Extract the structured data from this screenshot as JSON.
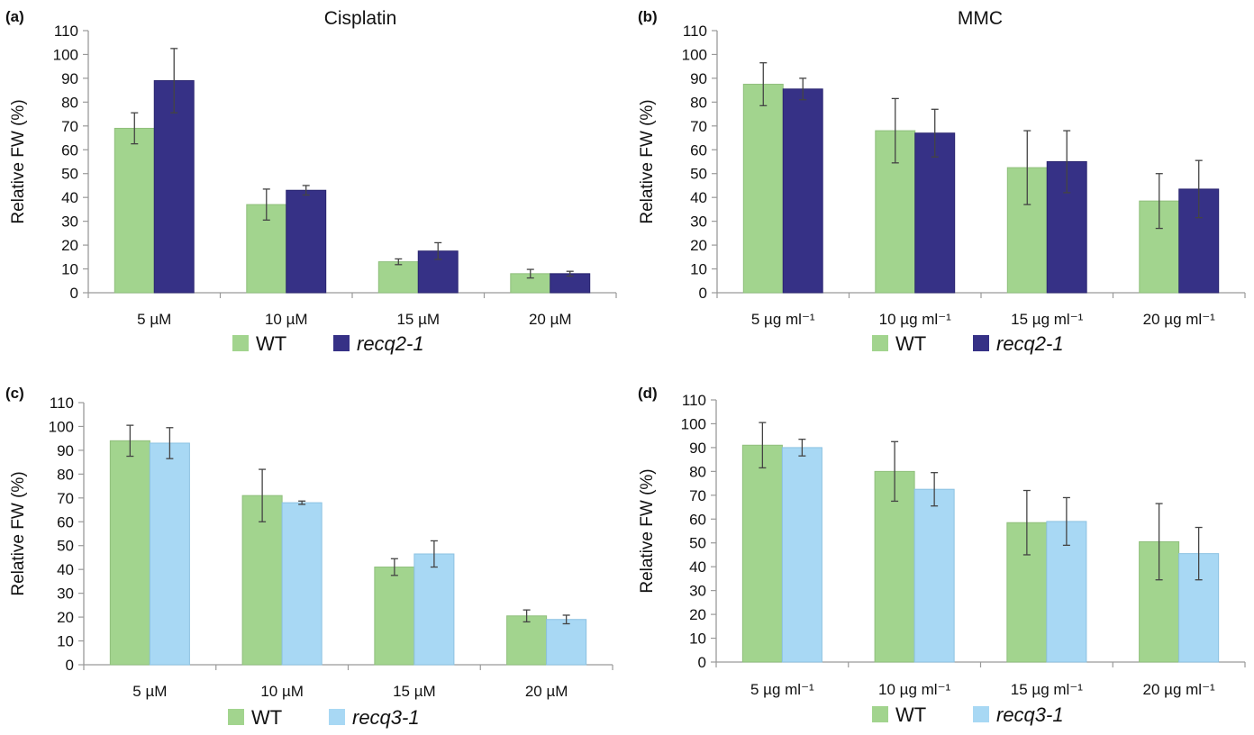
{
  "colors": {
    "wt": "#a2d48e",
    "recq2": "#363186",
    "recq3": "#a8d8f4",
    "axis": "#9a9a9a",
    "err": "#444444"
  },
  "chart_data": [
    {
      "panel": "(a)",
      "title": "Cisplatin",
      "type": "bar",
      "ylabel": "Relative FW (%)",
      "ylim": [
        0,
        110
      ],
      "yticks_step": 10,
      "categories": [
        "5 µM",
        "10 µM",
        "15 µM",
        "20 µM"
      ],
      "series": [
        {
          "name": "WT",
          "color_key": "wt",
          "values": [
            69,
            37,
            13,
            8
          ],
          "errors": [
            6.5,
            6.5,
            1.2,
            1.8
          ]
        },
        {
          "name": "recq2-1",
          "color_key": "recq2",
          "values": [
            89,
            43,
            17.5,
            8
          ],
          "errors": [
            13.5,
            2,
            3.5,
            1
          ]
        }
      ]
    },
    {
      "panel": "(b)",
      "title": "MMC",
      "type": "bar",
      "ylabel": "Relative FW (%)",
      "ylim": [
        0,
        110
      ],
      "yticks_step": 10,
      "categories": [
        "5 µg ml⁻¹",
        "10 µg ml⁻¹",
        "15 µg ml⁻¹",
        "20 µg ml⁻¹"
      ],
      "series": [
        {
          "name": "WT",
          "color_key": "wt",
          "values": [
            87.5,
            68,
            52.5,
            38.5
          ],
          "errors": [
            9,
            13.5,
            15.5,
            11.5
          ]
        },
        {
          "name": "recq2-1",
          "color_key": "recq2",
          "values": [
            85.5,
            67,
            55,
            43.5
          ],
          "errors": [
            4.5,
            10,
            13,
            12
          ]
        }
      ]
    },
    {
      "panel": "(c)",
      "title": "",
      "type": "bar",
      "ylabel": "Relative FW (%)",
      "ylim": [
        0,
        110
      ],
      "yticks_step": 10,
      "categories": [
        "5 µM",
        "10 µM",
        "15 µM",
        "20 µM"
      ],
      "series": [
        {
          "name": "WT",
          "color_key": "wt",
          "values": [
            94,
            71,
            41,
            20.5
          ],
          "errors": [
            6.5,
            11,
            3.5,
            2.5
          ]
        },
        {
          "name": "recq3-1",
          "color_key": "recq3",
          "values": [
            93,
            68,
            46.5,
            19
          ],
          "errors": [
            6.5,
            0.7,
            5.5,
            1.8
          ]
        }
      ]
    },
    {
      "panel": "(d)",
      "title": "",
      "type": "bar",
      "ylabel": "Relative FW (%)",
      "ylim": [
        0,
        110
      ],
      "yticks_step": 10,
      "categories": [
        "5 µg ml⁻¹",
        "10 µg ml⁻¹",
        "15 µg ml⁻¹",
        "20 µg ml⁻¹"
      ],
      "series": [
        {
          "name": "WT",
          "color_key": "wt",
          "values": [
            91,
            80,
            58.5,
            50.5
          ],
          "errors": [
            9.5,
            12.5,
            13.5,
            16
          ]
        },
        {
          "name": "recq3-1",
          "color_key": "recq3",
          "values": [
            90,
            72.5,
            59,
            45.5
          ],
          "errors": [
            3.5,
            7,
            10,
            11
          ]
        }
      ]
    }
  ]
}
